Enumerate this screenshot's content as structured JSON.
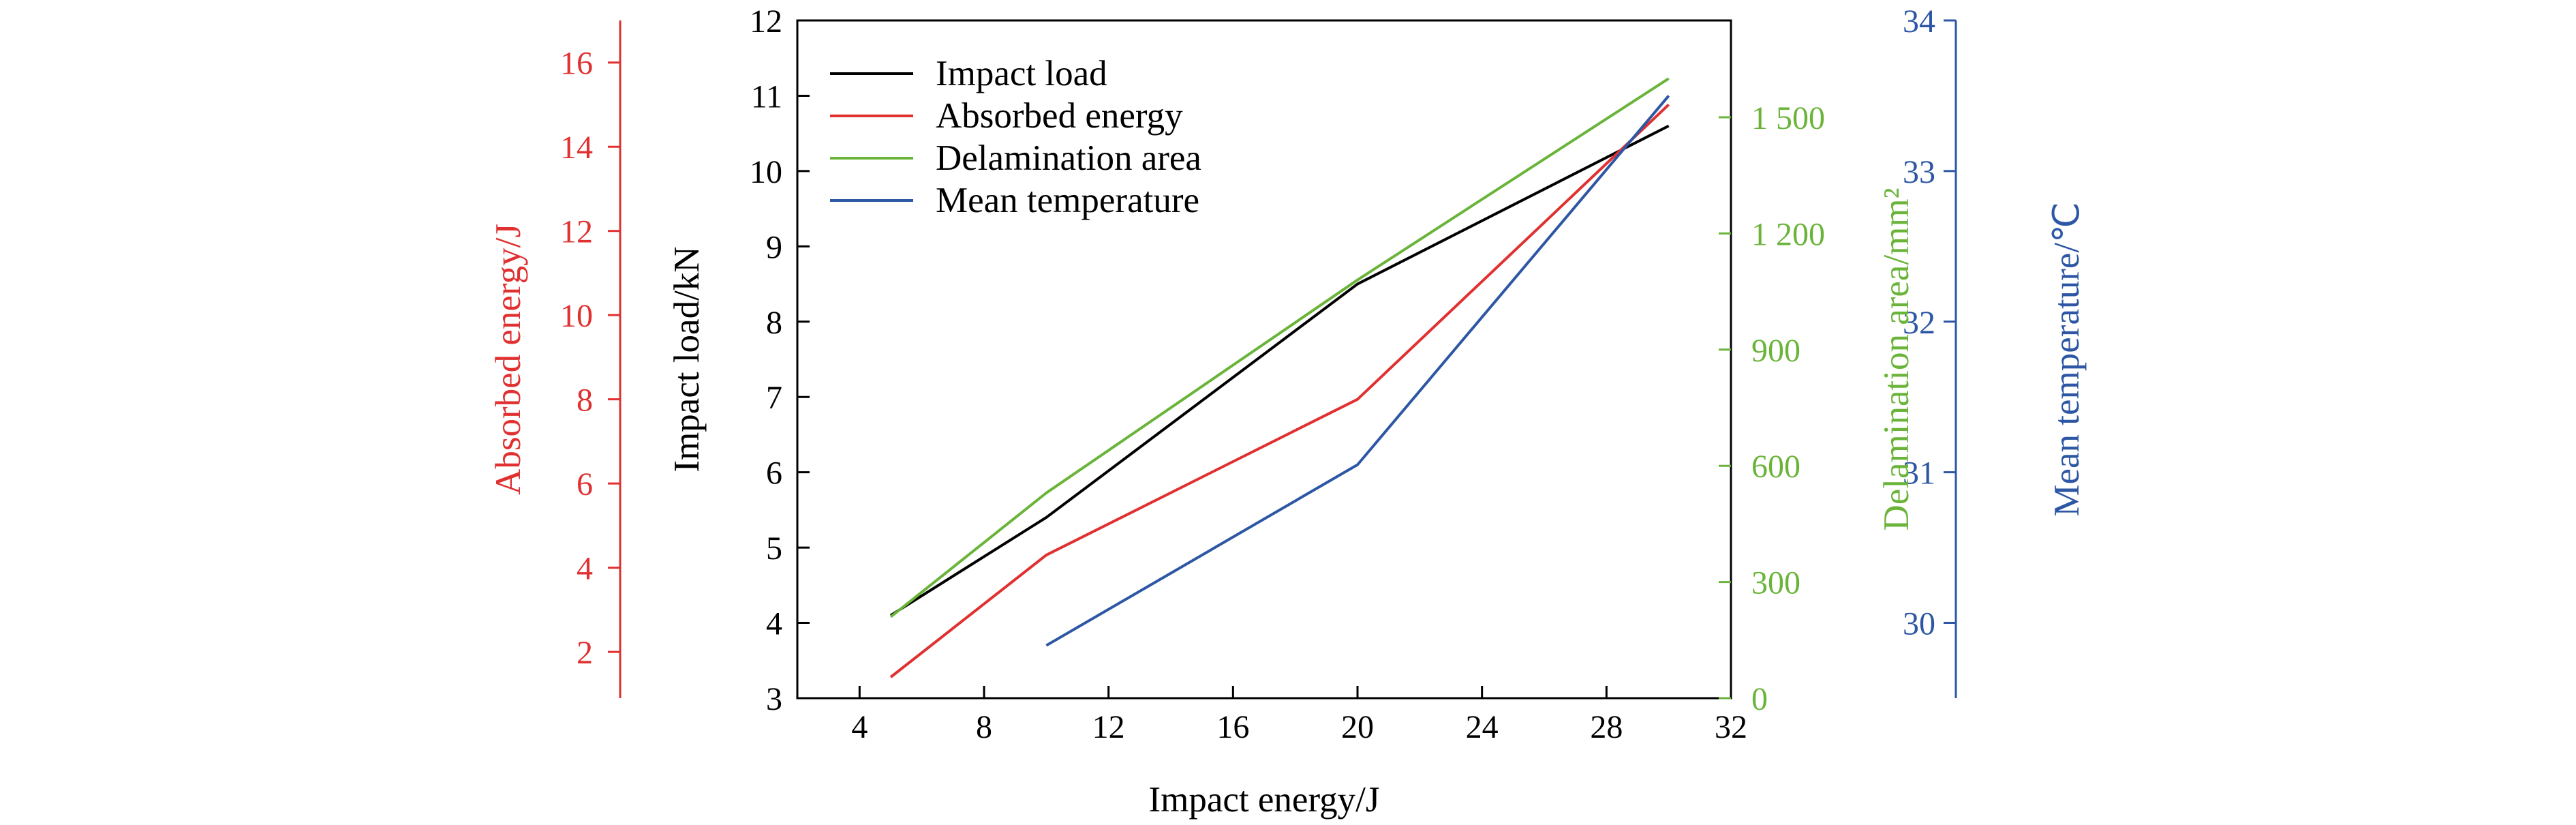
{
  "chart_data": {
    "type": "line",
    "xlabel": "Impact energy/J",
    "xlim": [
      2,
      32
    ],
    "xticks": [
      4,
      8,
      12,
      16,
      20,
      24,
      28,
      32
    ],
    "legend_position": "top-left",
    "axes": {
      "load": {
        "label": "Impact load/kN",
        "color": "#000000",
        "ylim": [
          3,
          12
        ],
        "ticks": [
          "3",
          "4",
          "5",
          "6",
          "7",
          "8",
          "9",
          "10",
          "11",
          "12"
        ]
      },
      "energy": {
        "label": "Absorbed energy/J",
        "color": "#e03030",
        "ylim": [
          0.9,
          17
        ],
        "ticks": [
          "2",
          "4",
          "6",
          "8",
          "10",
          "12",
          "14",
          "16"
        ]
      },
      "area": {
        "label": "Delamination area/mm²",
        "color": "#6ab43a",
        "ylim": [
          0,
          1750
        ],
        "ticks": [
          "0",
          "300",
          "600",
          "900",
          "1 200",
          "1 500"
        ]
      },
      "temp": {
        "label": "Mean temperature/℃",
        "color": "#2d57a4",
        "ylim": [
          29.5,
          34
        ],
        "ticks": [
          "30",
          "31",
          "32",
          "33",
          "34"
        ]
      }
    },
    "series": [
      {
        "name": "Impact load",
        "axis": "load",
        "color": "#000000",
        "x": [
          5,
          10,
          20,
          30
        ],
        "y": [
          4.1,
          5.4,
          8.5,
          10.6
        ]
      },
      {
        "name": "Absorbed energy",
        "axis": "energy",
        "color": "#e03030",
        "x": [
          5,
          10,
          20,
          30
        ],
        "y": [
          1.4,
          4.3,
          8.0,
          15.0
        ]
      },
      {
        "name": "Delamination area",
        "axis": "area",
        "color": "#6ab43a",
        "x": [
          5,
          10,
          20,
          30
        ],
        "y": [
          210,
          530,
          1080,
          1600
        ]
      },
      {
        "name": "Mean temperature",
        "axis": "temp",
        "color": "#2d57a4",
        "x": [
          10,
          20,
          30
        ],
        "y": [
          29.85,
          31.05,
          33.5
        ]
      }
    ]
  }
}
